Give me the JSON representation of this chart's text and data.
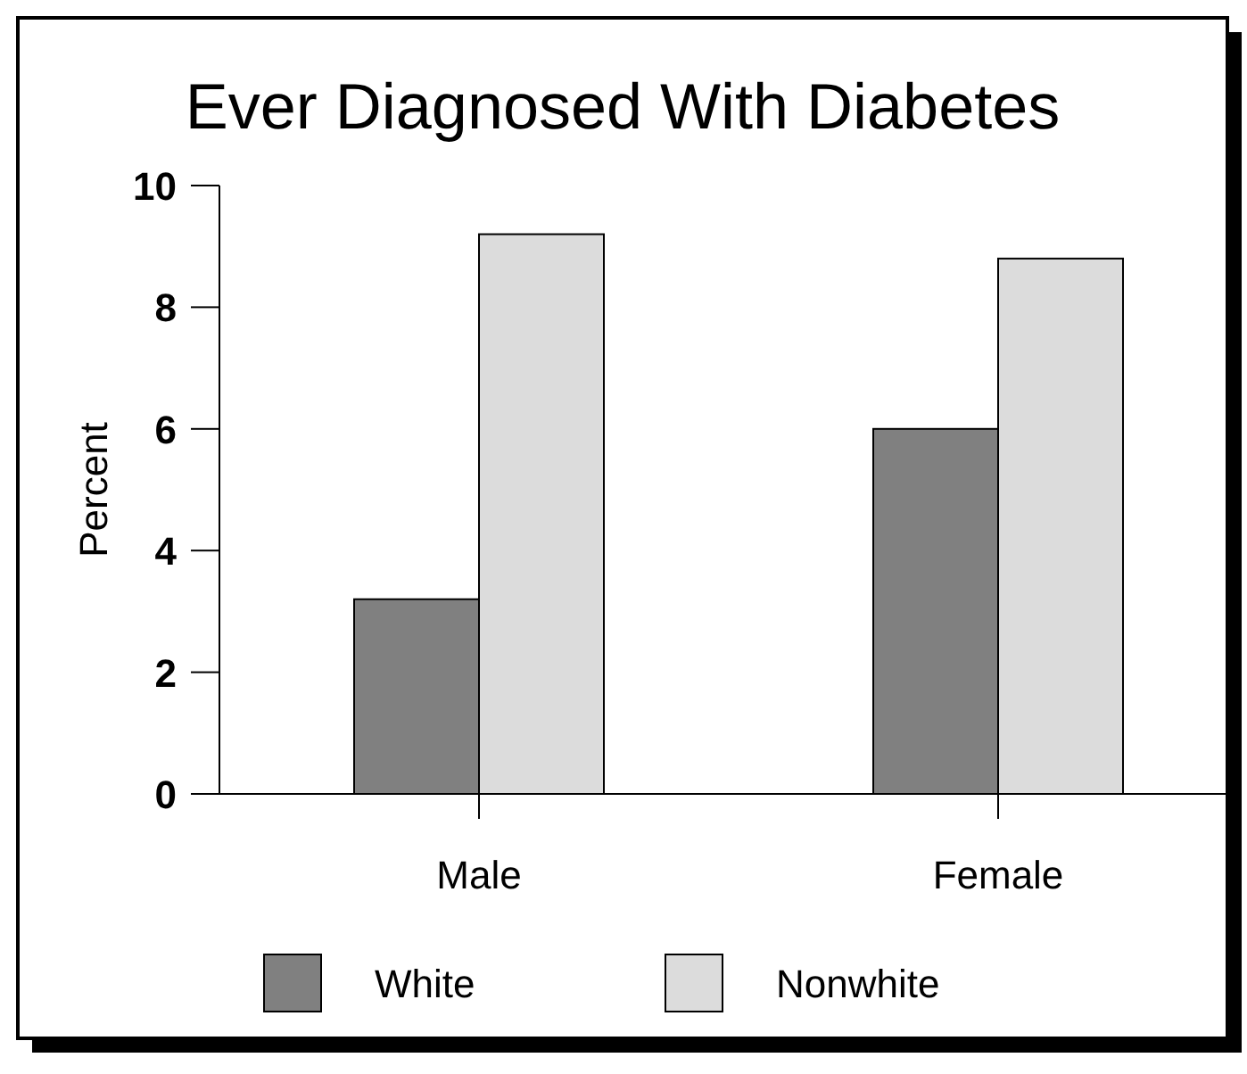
{
  "chart_data": {
    "type": "bar",
    "title": "Ever Diagnosed With Diabetes",
    "ylabel": "Percent",
    "categories": [
      "Male",
      "Female"
    ],
    "series": [
      {
        "name": "White",
        "color": "#808080",
        "values": [
          3.2,
          6.0
        ]
      },
      {
        "name": "Nonwhite",
        "color": "#dcdcdc",
        "values": [
          9.2,
          8.8
        ]
      }
    ],
    "ylim": [
      0,
      10
    ],
    "yticks": [
      0,
      2,
      4,
      6,
      8,
      10
    ],
    "grid": false,
    "legend": "bottom"
  }
}
